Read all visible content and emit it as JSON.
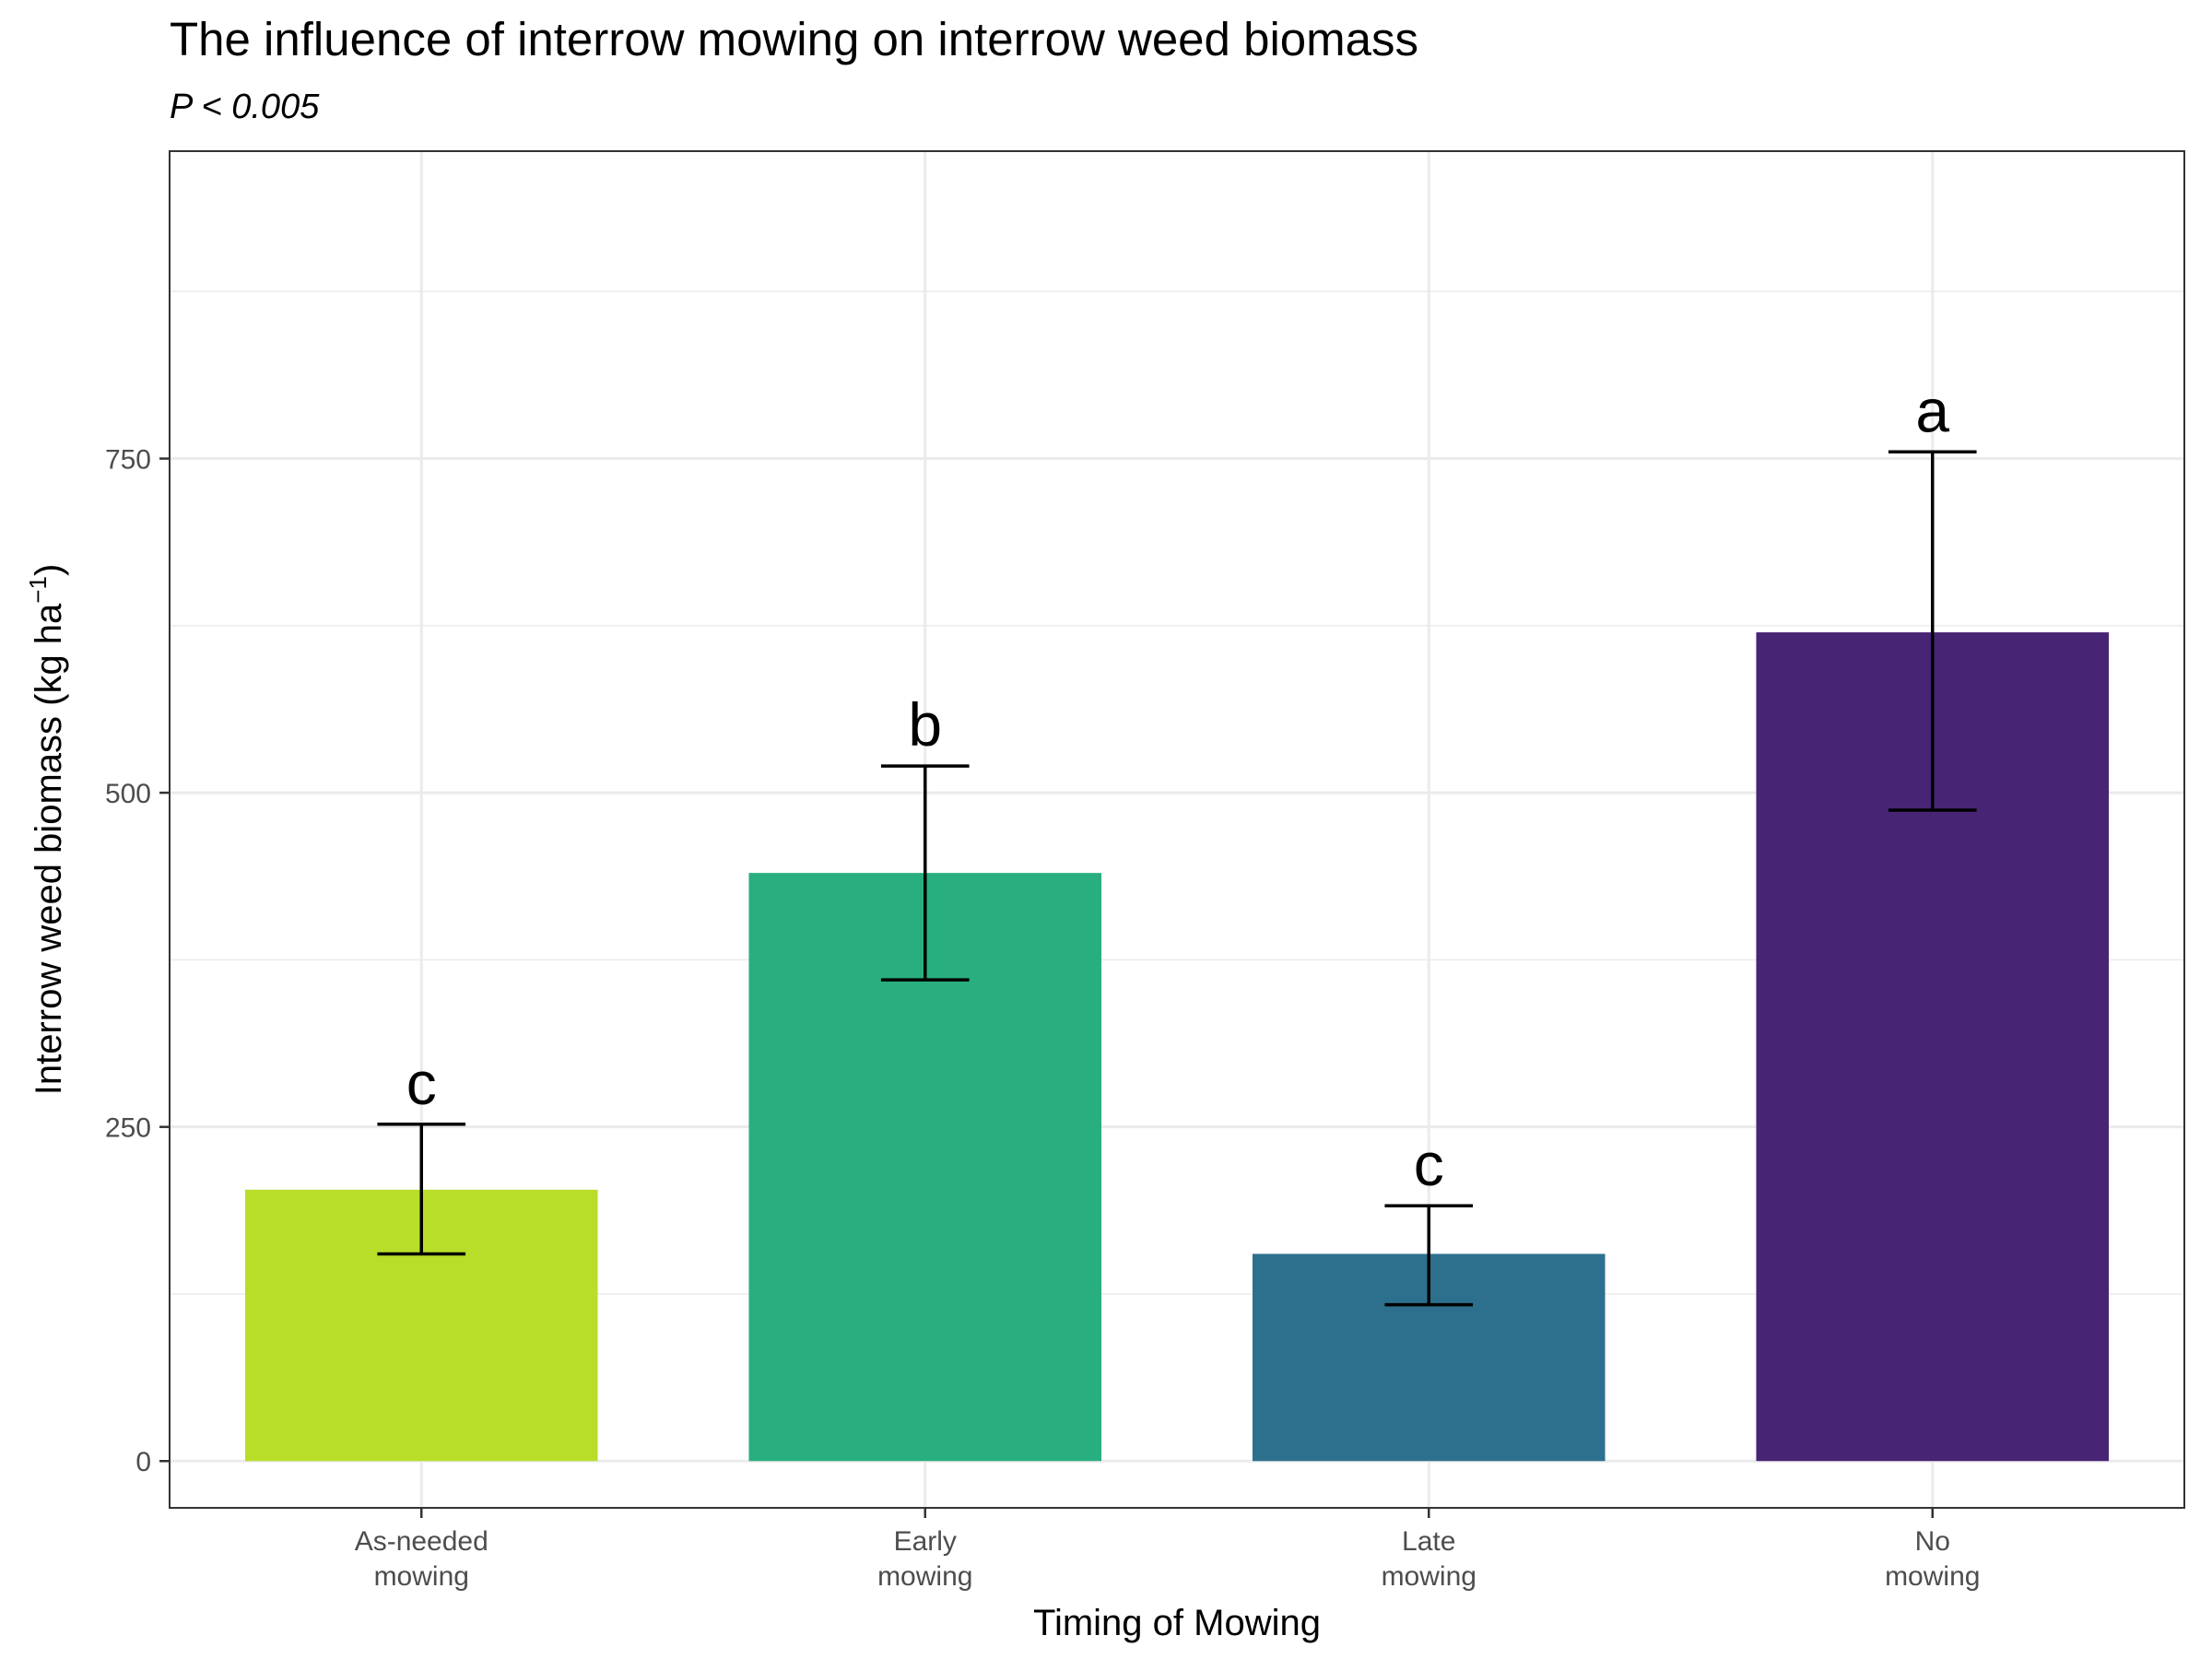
{
  "chart_data": {
    "type": "bar",
    "title": "The influence of interrow mowing on interrow weed biomass",
    "subtitle": "P < 0.005",
    "xlabel": "Timing of Mowing",
    "ylabel": "Interrow weed biomass (kg ha",
    "ylabel_superscript": "−1",
    "ylabel_suffix": ")",
    "categories": [
      [
        "As-needed",
        "mowing"
      ],
      [
        "Early",
        "mowing"
      ],
      [
        "Late",
        "mowing"
      ],
      [
        "No",
        "mowing"
      ]
    ],
    "values": [
      203,
      440,
      155,
      620
    ],
    "error_low": [
      155,
      360,
      117,
      487
    ],
    "error_high": [
      252,
      520,
      191,
      755
    ],
    "significance_letters": [
      "c",
      "b",
      "c",
      "a"
    ],
    "colors": [
      "#b8de29",
      "#29af7f",
      "#2d708e",
      "#482475"
    ],
    "ylim": [
      -35,
      980
    ],
    "yticks": [
      0,
      250,
      500,
      750
    ],
    "ytick_labels": [
      "0",
      "250",
      "500",
      "750"
    ],
    "grid": true,
    "legend": "none"
  }
}
